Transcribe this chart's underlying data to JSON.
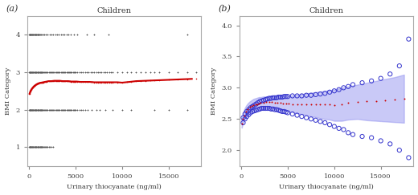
{
  "title": "Children",
  "xlabel": "Urinary thiocyanate (ng/ml)",
  "ylabel": "BMI Category",
  "panel_a_label": "(a)",
  "panel_b_label": "(b)",
  "panel_a": {
    "xlim": [
      -200,
      18500
    ],
    "ylim": [
      0.5,
      4.5
    ],
    "yticks": [
      1,
      2,
      3,
      4
    ],
    "xticks": [
      0,
      5000,
      10000,
      15000
    ]
  },
  "panel_b": {
    "xlim": [
      -200,
      18500
    ],
    "ylim": [
      1.75,
      4.15
    ],
    "yticks": [
      2.0,
      2.5,
      3.0,
      3.5,
      4.0
    ],
    "xticks": [
      0,
      5000,
      10000,
      15000
    ]
  },
  "cat1_x": [
    0,
    30,
    60,
    90,
    120,
    150,
    200,
    250,
    300,
    350,
    400,
    450,
    500,
    550,
    600,
    650,
    700,
    750,
    800,
    850,
    900,
    950,
    1000,
    1050,
    1100,
    1150,
    1200,
    1250,
    1300,
    1350,
    1400,
    1450,
    1500,
    1600,
    1700,
    1800,
    1900,
    2000,
    2100,
    2200,
    2400,
    2600
  ],
  "cat2_x": [
    0,
    30,
    60,
    90,
    120,
    150,
    200,
    250,
    300,
    350,
    400,
    450,
    500,
    550,
    600,
    650,
    700,
    750,
    800,
    850,
    900,
    950,
    1000,
    1050,
    1100,
    1150,
    1200,
    1250,
    1300,
    1350,
    1400,
    1450,
    1500,
    1600,
    1700,
    1800,
    1900,
    2000,
    2100,
    2200,
    2300,
    2400,
    2500,
    2600,
    2700,
    2800,
    2900,
    3000,
    3100,
    3200,
    3300,
    3400,
    3500,
    3600,
    3700,
    3800,
    3900,
    4000,
    4100,
    4200,
    4300,
    4400,
    4500,
    4600,
    4700,
    4800,
    4900,
    5000,
    5200,
    5400,
    5600,
    5800,
    6000,
    6300,
    6700,
    7200,
    7600,
    8200,
    9000,
    10000,
    11000,
    13500,
    15000,
    17000
  ],
  "cat3_x": [
    0,
    30,
    60,
    90,
    120,
    150,
    200,
    250,
    300,
    350,
    400,
    450,
    500,
    550,
    600,
    650,
    700,
    750,
    800,
    850,
    900,
    950,
    1000,
    1050,
    1100,
    1150,
    1200,
    1250,
    1300,
    1350,
    1400,
    1450,
    1500,
    1600,
    1700,
    1800,
    1900,
    2000,
    2100,
    2200,
    2300,
    2400,
    2500,
    2600,
    2700,
    2800,
    2900,
    3000,
    3100,
    3200,
    3300,
    3400,
    3500,
    3600,
    3700,
    3800,
    3900,
    4000,
    4100,
    4200,
    4300,
    4400,
    4500,
    4600,
    4700,
    4800,
    4900,
    5000,
    5200,
    5400,
    5600,
    5800,
    6000,
    6200,
    6400,
    6600,
    6800,
    7000,
    7200,
    7400,
    7600,
    7800,
    8000,
    8200,
    8400,
    8600,
    8800,
    9000,
    9500,
    10000,
    10500,
    11000,
    11500,
    12000,
    12500,
    13000,
    13500,
    14000,
    15000,
    16000,
    17000,
    18000
  ],
  "cat4_x": [
    0,
    30,
    60,
    90,
    120,
    150,
    200,
    250,
    300,
    350,
    400,
    450,
    500,
    550,
    600,
    650,
    700,
    750,
    800,
    850,
    900,
    950,
    1000,
    1050,
    1100,
    1200,
    1300,
    1400,
    1500,
    1600,
    1800,
    2000,
    2200,
    2400,
    2600,
    2800,
    3000,
    3200,
    3400,
    3600,
    3800,
    4000,
    4200,
    4500,
    4800,
    5200,
    6200,
    7000,
    8500,
    17000
  ],
  "curve_x": [
    50,
    150,
    300,
    500,
    700,
    900,
    1100,
    1300,
    1500,
    1700,
    1900,
    2100,
    2400,
    2700,
    3000,
    3300,
    3600,
    3900,
    4200,
    4500,
    4800,
    5100,
    5500,
    6000,
    6500,
    7000,
    7500,
    8000,
    8500,
    9000,
    9500,
    10000,
    10800,
    11500,
    12500,
    13500,
    14500,
    15500,
    16500,
    17500
  ],
  "curve_y": [
    2.43,
    2.5,
    2.56,
    2.62,
    2.66,
    2.69,
    2.71,
    2.72,
    2.73,
    2.74,
    2.75,
    2.76,
    2.76,
    2.77,
    2.77,
    2.77,
    2.76,
    2.76,
    2.76,
    2.75,
    2.75,
    2.75,
    2.74,
    2.74,
    2.74,
    2.73,
    2.73,
    2.73,
    2.73,
    2.73,
    2.73,
    2.72,
    2.74,
    2.76,
    2.77,
    2.78,
    2.79,
    2.8,
    2.81,
    2.82
  ],
  "ci_upper": [
    2.5,
    2.58,
    2.65,
    2.71,
    2.75,
    2.78,
    2.8,
    2.82,
    2.83,
    2.84,
    2.85,
    2.85,
    2.86,
    2.86,
    2.87,
    2.87,
    2.87,
    2.87,
    2.87,
    2.87,
    2.87,
    2.87,
    2.88,
    2.89,
    2.9,
    2.91,
    2.92,
    2.93,
    2.94,
    2.95,
    2.96,
    2.97,
    3.0,
    3.02,
    3.05,
    3.08,
    3.11,
    3.14,
    3.17,
    3.21
  ],
  "ci_lower": [
    2.36,
    2.42,
    2.48,
    2.53,
    2.57,
    2.6,
    2.62,
    2.63,
    2.64,
    2.65,
    2.65,
    2.66,
    2.66,
    2.67,
    2.67,
    2.67,
    2.66,
    2.65,
    2.65,
    2.64,
    2.63,
    2.62,
    2.61,
    2.59,
    2.58,
    2.56,
    2.54,
    2.53,
    2.51,
    2.5,
    2.49,
    2.47,
    2.47,
    2.49,
    2.5,
    2.48,
    2.47,
    2.46,
    2.45,
    2.44
  ],
  "b_scatter_upper": [
    [
      200,
      2.52
    ],
    [
      400,
      2.58
    ],
    [
      600,
      2.62
    ],
    [
      800,
      2.65
    ],
    [
      1000,
      2.68
    ],
    [
      1200,
      2.7
    ],
    [
      1400,
      2.72
    ],
    [
      1600,
      2.74
    ],
    [
      1800,
      2.76
    ],
    [
      2000,
      2.78
    ],
    [
      2200,
      2.79
    ],
    [
      2400,
      2.8
    ],
    [
      2600,
      2.81
    ],
    [
      2800,
      2.82
    ],
    [
      3000,
      2.83
    ],
    [
      3200,
      2.83
    ],
    [
      3400,
      2.84
    ],
    [
      3600,
      2.84
    ],
    [
      3800,
      2.84
    ],
    [
      4000,
      2.85
    ],
    [
      4200,
      2.85
    ],
    [
      4400,
      2.85
    ],
    [
      4600,
      2.86
    ],
    [
      4800,
      2.86
    ],
    [
      5000,
      2.86
    ],
    [
      5500,
      2.87
    ],
    [
      6000,
      2.87
    ],
    [
      6500,
      2.87
    ],
    [
      7000,
      2.88
    ],
    [
      7500,
      2.88
    ],
    [
      8000,
      2.89
    ],
    [
      8500,
      2.9
    ],
    [
      9000,
      2.91
    ],
    [
      9500,
      2.93
    ],
    [
      10000,
      2.95
    ],
    [
      10500,
      2.97
    ],
    [
      11000,
      3.0
    ],
    [
      11500,
      3.02
    ],
    [
      12000,
      3.05
    ],
    [
      13000,
      3.08
    ],
    [
      14000,
      3.11
    ],
    [
      15000,
      3.15
    ],
    [
      16000,
      3.22
    ],
    [
      17000,
      3.35
    ],
    [
      18000,
      3.78
    ]
  ],
  "b_scatter_lower": [
    [
      200,
      2.44
    ],
    [
      400,
      2.5
    ],
    [
      600,
      2.54
    ],
    [
      800,
      2.57
    ],
    [
      1000,
      2.6
    ],
    [
      1200,
      2.62
    ],
    [
      1400,
      2.63
    ],
    [
      1600,
      2.64
    ],
    [
      1800,
      2.65
    ],
    [
      2000,
      2.66
    ],
    [
      2200,
      2.67
    ],
    [
      2400,
      2.67
    ],
    [
      2600,
      2.67
    ],
    [
      2800,
      2.67
    ],
    [
      3000,
      2.67
    ],
    [
      3200,
      2.66
    ],
    [
      3400,
      2.66
    ],
    [
      3600,
      2.65
    ],
    [
      3800,
      2.65
    ],
    [
      4000,
      2.64
    ],
    [
      4200,
      2.63
    ],
    [
      4400,
      2.62
    ],
    [
      4600,
      2.62
    ],
    [
      4800,
      2.61
    ],
    [
      5000,
      2.6
    ],
    [
      5500,
      2.58
    ],
    [
      6000,
      2.56
    ],
    [
      6500,
      2.54
    ],
    [
      7000,
      2.52
    ],
    [
      7500,
      2.5
    ],
    [
      8000,
      2.48
    ],
    [
      8500,
      2.46
    ],
    [
      9000,
      2.44
    ],
    [
      9500,
      2.41
    ],
    [
      10000,
      2.38
    ],
    [
      10500,
      2.35
    ],
    [
      11000,
      2.33
    ],
    [
      11500,
      2.28
    ],
    [
      12000,
      2.25
    ],
    [
      13000,
      2.22
    ],
    [
      14000,
      2.2
    ],
    [
      15000,
      2.15
    ],
    [
      16000,
      2.1
    ],
    [
      17000,
      2.0
    ],
    [
      18000,
      1.88
    ]
  ],
  "scatter_color": "#555555",
  "red_color": "#cc0000",
  "blue_color": "#3333cc",
  "blue_fill": "#8888ee",
  "bg_color": "#ffffff"
}
